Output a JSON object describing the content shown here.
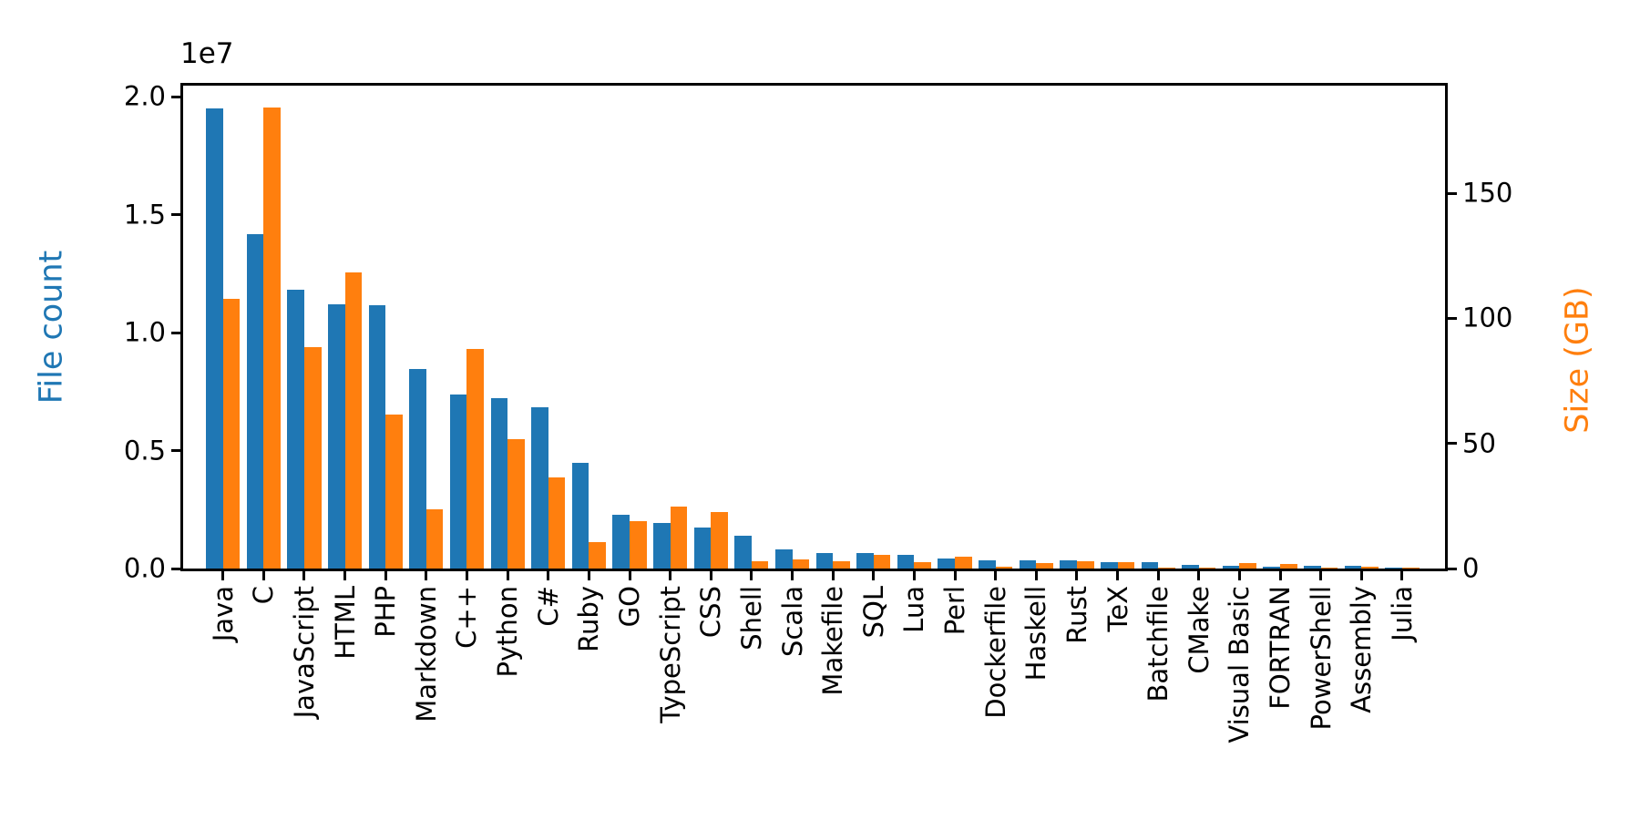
{
  "colors": {
    "file_count": "#1f77b4",
    "size": "#ff7f0e",
    "axis": "#000000",
    "background": "#ffffff"
  },
  "left_axis": {
    "label": "File count",
    "offset_label": "1e7",
    "tick_labels": [
      "0.0",
      "0.5",
      "1.0",
      "1.5",
      "2.0"
    ],
    "tick_values": [
      0,
      5000000,
      10000000,
      15000000,
      20000000
    ],
    "max": 20475000
  },
  "right_axis": {
    "label": "Size (GB)",
    "tick_labels": [
      "0",
      "50",
      "100",
      "150"
    ],
    "tick_values": [
      0,
      50,
      100,
      150
    ],
    "max": 193
  },
  "chart_data": {
    "type": "bar",
    "title": "",
    "xlabel": "",
    "ylabel_left": "File count",
    "ylabel_right": "Size (GB)",
    "legend_position": "none",
    "grid": false,
    "ylim_left": [
      0,
      20475000
    ],
    "ylim_right": [
      0,
      193
    ],
    "categories": [
      "Java",
      "C",
      "JavaScript",
      "HTML",
      "PHP",
      "Markdown",
      "C++",
      "Python",
      "C#",
      "Ruby",
      "GO",
      "TypeScript",
      "CSS",
      "Shell",
      "Scala",
      "Makefile",
      "SQL",
      "Lua",
      "Perl",
      "Dockerfile",
      "Haskell",
      "Rust",
      "TeX",
      "Batchfile",
      "CMake",
      "Visual Basic",
      "FORTRAN",
      "PowerShell",
      "Assembly",
      "Julia"
    ],
    "series": [
      {
        "name": "File count",
        "axis": "left",
        "values": [
          19500000,
          14160000,
          11830000,
          11200000,
          11150000,
          8460000,
          7380000,
          7240000,
          6830000,
          4470000,
          2270000,
          1920000,
          1730000,
          1380000,
          810000,
          660000,
          650000,
          580000,
          430000,
          340000,
          340000,
          350000,
          280000,
          260000,
          150000,
          110000,
          90000,
          130000,
          100000,
          40000
        ]
      },
      {
        "name": "Size (GB)",
        "axis": "right",
        "values": [
          107.7,
          184.3,
          88.5,
          118.4,
          61.4,
          23.5,
          87.9,
          51.8,
          36.5,
          10.7,
          19.0,
          24.6,
          22.7,
          2.9,
          3.7,
          2.9,
          5.5,
          2.5,
          4.6,
          0.7,
          2.1,
          3.0,
          2.6,
          0.4,
          0.5,
          2.2,
          1.9,
          0.4,
          0.7,
          0.25
        ]
      }
    ]
  }
}
